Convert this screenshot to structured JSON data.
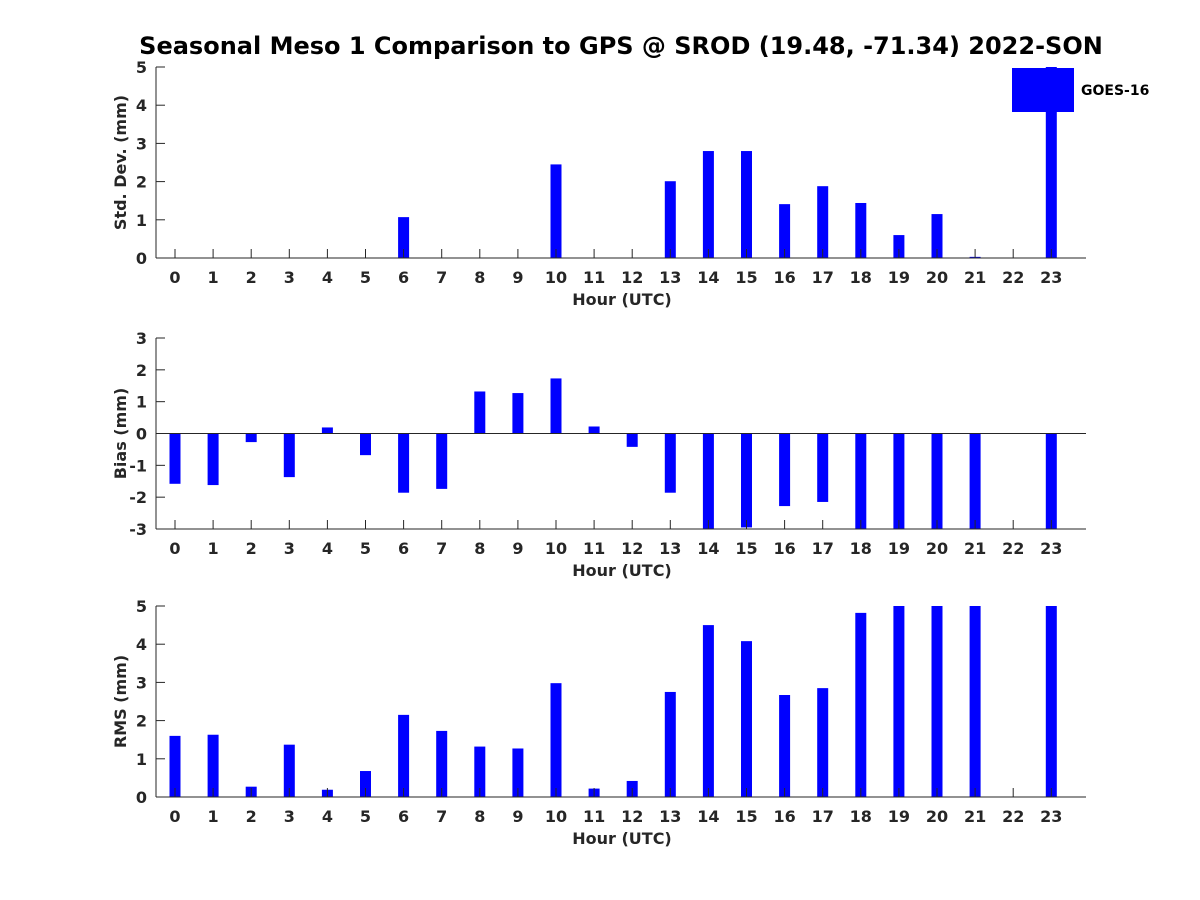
{
  "title": "Seasonal Meso 1 Comparison to GPS @ SROD (19.48, -71.34) 2022-SON",
  "colors": {
    "bar": "#0000ff",
    "axis": "#262626"
  },
  "legend": {
    "label": "GOES-16",
    "placement": "top-right"
  },
  "chart_data": [
    {
      "type": "bar",
      "ylabel": "Std. Dev. (mm)",
      "xlabel": "Hour (UTC)",
      "ylim": [
        0,
        5
      ],
      "yticks": [
        0,
        1,
        2,
        3,
        4,
        5
      ],
      "categories": [
        "0",
        "1",
        "2",
        "3",
        "4",
        "5",
        "6",
        "7",
        "8",
        "9",
        "10",
        "11",
        "12",
        "13",
        "14",
        "15",
        "16",
        "17",
        "18",
        "19",
        "20",
        "21",
        "22",
        "23"
      ],
      "series": [
        {
          "name": "GOES-16",
          "values": [
            null,
            null,
            null,
            null,
            null,
            null,
            1.07,
            null,
            null,
            null,
            2.45,
            null,
            null,
            2.01,
            2.8,
            2.8,
            1.41,
            1.88,
            1.44,
            0.6,
            1.15,
            0.03,
            null,
            5.0
          ]
        }
      ]
    },
    {
      "type": "bar",
      "ylabel": "Bias (mm)",
      "xlabel": "Hour (UTC)",
      "ylim": [
        -3,
        3
      ],
      "yticks": [
        -3,
        -2,
        -1,
        0,
        1,
        2,
        3
      ],
      "categories": [
        "0",
        "1",
        "2",
        "3",
        "4",
        "5",
        "6",
        "7",
        "8",
        "9",
        "10",
        "11",
        "12",
        "13",
        "14",
        "15",
        "16",
        "17",
        "18",
        "19",
        "20",
        "21",
        "22",
        "23"
      ],
      "series": [
        {
          "name": "GOES-16",
          "values": [
            -1.58,
            -1.62,
            -0.27,
            -1.37,
            0.19,
            -0.68,
            -1.86,
            -1.74,
            1.32,
            1.27,
            1.73,
            0.22,
            -0.42,
            -1.86,
            -3.0,
            -2.95,
            -2.28,
            -2.15,
            -3.0,
            -3.0,
            -3.0,
            -3.0,
            null,
            -3.0
          ]
        }
      ]
    },
    {
      "type": "bar",
      "ylabel": "RMS (mm)",
      "xlabel": "Hour (UTC)",
      "ylim": [
        0,
        5
      ],
      "yticks": [
        0,
        1,
        2,
        3,
        4,
        5
      ],
      "categories": [
        "0",
        "1",
        "2",
        "3",
        "4",
        "5",
        "6",
        "7",
        "8",
        "9",
        "10",
        "11",
        "12",
        "13",
        "14",
        "15",
        "16",
        "17",
        "18",
        "19",
        "20",
        "21",
        "22",
        "23"
      ],
      "series": [
        {
          "name": "GOES-16",
          "values": [
            1.6,
            1.63,
            0.27,
            1.37,
            0.19,
            0.68,
            2.15,
            1.73,
            1.32,
            1.27,
            2.98,
            0.22,
            0.42,
            2.75,
            4.5,
            4.08,
            2.67,
            2.85,
            4.82,
            5.0,
            5.0,
            5.0,
            null,
            5.0
          ]
        }
      ]
    }
  ]
}
